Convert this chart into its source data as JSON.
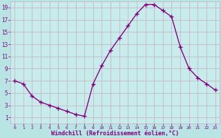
{
  "x": [
    0,
    1,
    2,
    3,
    4,
    5,
    6,
    7,
    8,
    9,
    10,
    11,
    12,
    13,
    14,
    15,
    16,
    17,
    18,
    19,
    20,
    21,
    22,
    23
  ],
  "y": [
    7,
    6.5,
    4.5,
    3.5,
    3,
    2.5,
    2,
    1.5,
    1.2,
    6.5,
    9.5,
    12,
    14,
    16,
    18,
    19.5,
    19.5,
    18.5,
    17.5,
    12.5,
    9,
    7.5,
    6.5,
    5.5
  ],
  "line_color": "#800080",
  "marker": "+",
  "marker_color": "#800080",
  "bg_color": "#b8e4e4",
  "grid_color": "#c8b4c8",
  "plot_bg_color": "#c8ecec",
  "xlabel": "Windchill (Refroidissement éolien,°C)",
  "xlabel_color": "#800080",
  "tick_color": "#800080",
  "ylim": [
    0,
    20
  ],
  "xlim": [
    -0.5,
    23.5
  ],
  "yticks": [
    1,
    3,
    5,
    7,
    9,
    11,
    13,
    15,
    17,
    19
  ],
  "xticks": [
    0,
    1,
    2,
    3,
    4,
    5,
    6,
    7,
    8,
    9,
    10,
    11,
    12,
    13,
    14,
    15,
    16,
    17,
    18,
    19,
    20,
    21,
    22,
    23
  ],
  "marker_size": 4,
  "line_width": 1.0
}
